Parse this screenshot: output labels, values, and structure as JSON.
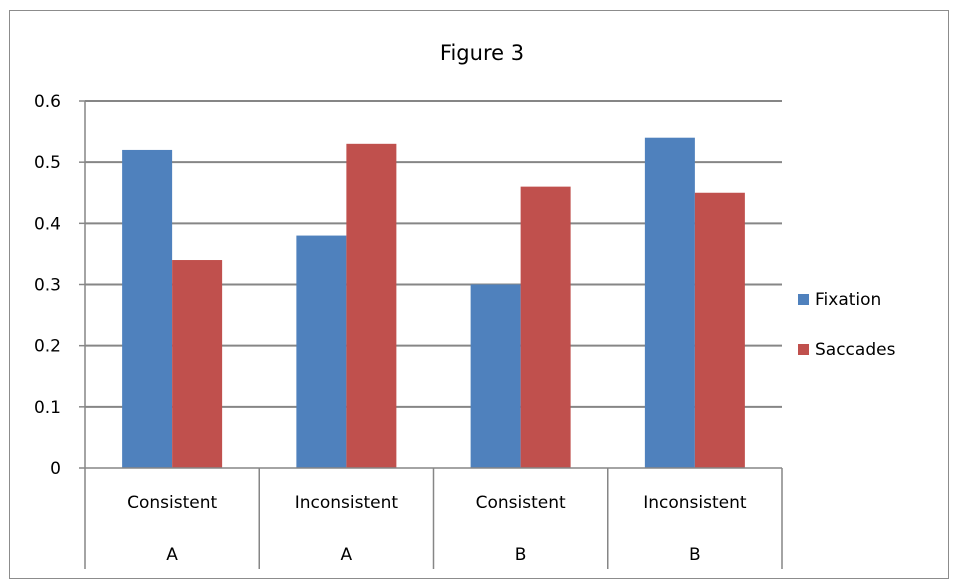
{
  "chart_data": {
    "type": "bar",
    "title": "Figure 3",
    "xlabel": "",
    "ylabel": "",
    "ylim": [
      0,
      0.6
    ],
    "yticks": [
      "0",
      "0.1",
      "0.2",
      "0.3",
      "0.4",
      "0.5",
      "0.6"
    ],
    "grid": true,
    "legend_position": "right",
    "categories": [
      {
        "label": "Consistent",
        "group": "A"
      },
      {
        "label": "Inconsistent",
        "group": "A"
      },
      {
        "label": "Consistent",
        "group": "B"
      },
      {
        "label": "Inconsistent",
        "group": "B"
      }
    ],
    "series": [
      {
        "name": "Fixation",
        "color": "#4f81bd",
        "values": [
          0.52,
          0.38,
          0.3,
          0.54
        ]
      },
      {
        "name": "Saccades",
        "color": "#c0504d",
        "values": [
          0.34,
          0.53,
          0.46,
          0.45
        ]
      }
    ]
  }
}
